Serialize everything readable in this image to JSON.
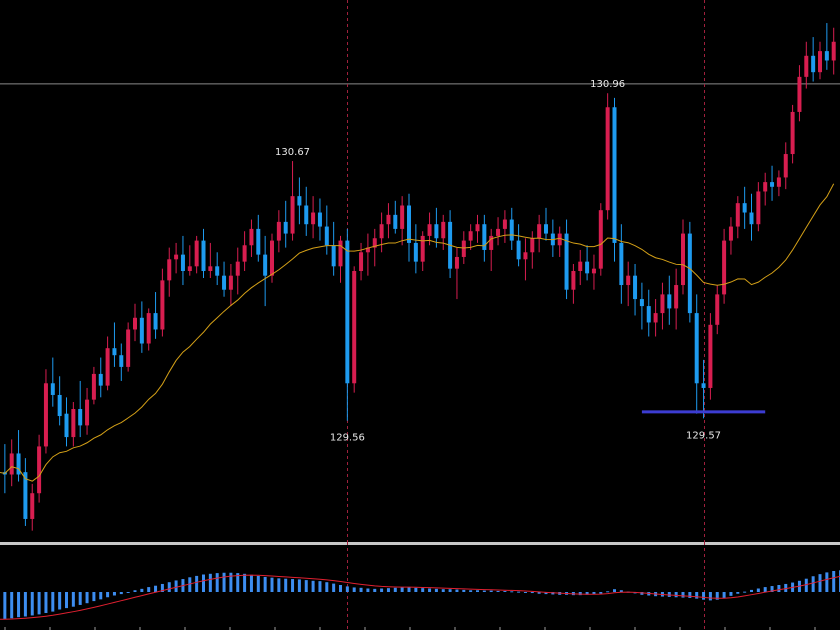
{
  "chart_data": [
    {
      "type": "candlestick",
      "panel": "main",
      "colors": {
        "up_body": "#d81e50",
        "down_body": "#1e9bf0",
        "doji": "#2ecc40",
        "moving_average": "#d4a017",
        "low_marker": "#3c3cd2",
        "horizontal_line": "#8a8a8a",
        "vertical_line": "#a0203c"
      },
      "ylim": [
        129.05,
        131.35
      ],
      "horizontal_line_price": 131.0,
      "markers": [
        {
          "label": "130.67",
          "price": 130.67,
          "candle": 43
        },
        {
          "label": "129.56",
          "price": 129.56,
          "candle": 51
        },
        {
          "label": "130.96",
          "price": 130.96,
          "candle": 89
        },
        {
          "label": "129.57",
          "price": 129.57,
          "candle": 103
        }
      ],
      "vertical_markers_at_candle": [
        51,
        103
      ],
      "low_marker_span_candles": [
        94,
        112
      ],
      "candles": [
        [
          129.26,
          129.39,
          129.2,
          129.34
        ],
        [
          129.34,
          129.46,
          129.25,
          129.33
        ],
        [
          129.33,
          129.48,
          129.28,
          129.42
        ],
        [
          129.42,
          129.52,
          129.3,
          129.33
        ],
        [
          129.34,
          129.4,
          129.11,
          129.14
        ],
        [
          129.14,
          129.29,
          129.09,
          129.25
        ],
        [
          129.25,
          129.5,
          129.21,
          129.45
        ],
        [
          129.45,
          129.78,
          129.42,
          129.72
        ],
        [
          129.72,
          129.83,
          129.62,
          129.67
        ],
        [
          129.67,
          129.75,
          129.54,
          129.58
        ],
        [
          129.59,
          129.66,
          129.45,
          129.49
        ],
        [
          129.49,
          129.64,
          129.45,
          129.61
        ],
        [
          129.61,
          129.73,
          129.49,
          129.54
        ],
        [
          129.54,
          129.7,
          129.5,
          129.65
        ],
        [
          129.65,
          129.79,
          129.63,
          129.76
        ],
        [
          129.76,
          129.83,
          129.66,
          129.71
        ],
        [
          129.71,
          129.92,
          129.69,
          129.87
        ],
        [
          129.87,
          129.98,
          129.79,
          129.84
        ],
        [
          129.84,
          129.89,
          129.73,
          129.79
        ],
        [
          129.79,
          129.98,
          129.77,
          129.95
        ],
        [
          129.95,
          130.06,
          129.9,
          130.0
        ],
        [
          130.0,
          130.07,
          129.85,
          129.89
        ],
        [
          129.89,
          130.04,
          129.86,
          130.02
        ],
        [
          130.02,
          130.11,
          129.91,
          129.95
        ],
        [
          129.95,
          130.21,
          129.92,
          130.16
        ],
        [
          130.16,
          130.3,
          130.09,
          130.25
        ],
        [
          130.25,
          130.32,
          130.19,
          130.27
        ],
        [
          130.27,
          130.35,
          130.14,
          130.2
        ],
        [
          130.2,
          130.31,
          130.18,
          130.22
        ],
        [
          130.22,
          130.35,
          130.19,
          130.33
        ],
        [
          130.33,
          130.38,
          130.17,
          130.2
        ],
        [
          130.2,
          130.32,
          130.17,
          130.22
        ],
        [
          130.22,
          130.28,
          130.14,
          130.18
        ],
        [
          130.18,
          130.24,
          130.09,
          130.12
        ],
        [
          130.12,
          130.23,
          130.05,
          130.18
        ],
        [
          130.18,
          130.3,
          130.1,
          130.24
        ],
        [
          130.24,
          130.37,
          130.2,
          130.31
        ],
        [
          130.31,
          130.42,
          130.26,
          130.38
        ],
        [
          130.38,
          130.44,
          130.24,
          130.27
        ],
        [
          130.27,
          130.35,
          130.05,
          130.18
        ],
        [
          130.18,
          130.36,
          130.15,
          130.33
        ],
        [
          130.33,
          130.46,
          130.28,
          130.41
        ],
        [
          130.41,
          130.5,
          130.3,
          130.36
        ],
        [
          130.36,
          130.67,
          130.33,
          130.52
        ],
        [
          130.52,
          130.6,
          130.4,
          130.48
        ],
        [
          130.48,
          130.56,
          130.35,
          130.4
        ],
        [
          130.4,
          130.52,
          130.34,
          130.45
        ],
        [
          130.45,
          130.51,
          130.33,
          130.39
        ],
        [
          130.39,
          130.48,
          130.27,
          130.31
        ],
        [
          130.31,
          130.41,
          130.18,
          130.22
        ],
        [
          130.22,
          130.35,
          130.15,
          130.33
        ],
        [
          130.33,
          130.38,
          129.56,
          129.72
        ],
        [
          129.72,
          130.22,
          129.68,
          130.2
        ],
        [
          130.2,
          130.32,
          130.16,
          130.28
        ],
        [
          130.28,
          130.36,
          130.18,
          130.3
        ],
        [
          130.3,
          130.38,
          130.22,
          130.34
        ],
        [
          130.34,
          130.45,
          130.28,
          130.4
        ],
        [
          130.4,
          130.49,
          130.34,
          130.44
        ],
        [
          130.44,
          130.5,
          130.36,
          130.38
        ],
        [
          130.38,
          130.52,
          130.31,
          130.48
        ],
        [
          130.48,
          130.53,
          130.24,
          130.32
        ],
        [
          130.32,
          130.4,
          130.19,
          130.24
        ],
        [
          130.24,
          130.37,
          130.2,
          130.35
        ],
        [
          130.35,
          130.45,
          130.31,
          130.4
        ],
        [
          130.4,
          130.47,
          130.3,
          130.34
        ],
        [
          130.34,
          130.44,
          130.29,
          130.41
        ],
        [
          130.41,
          130.46,
          130.17,
          130.21
        ],
        [
          130.21,
          130.3,
          130.08,
          130.26
        ],
        [
          130.26,
          130.37,
          130.23,
          130.33
        ],
        [
          130.33,
          130.4,
          130.29,
          130.37
        ],
        [
          130.37,
          130.44,
          130.32,
          130.4
        ],
        [
          130.4,
          130.44,
          130.24,
          130.29
        ],
        [
          130.29,
          130.38,
          130.2,
          130.35
        ],
        [
          130.35,
          130.43,
          130.31,
          130.38
        ],
        [
          130.38,
          130.46,
          130.32,
          130.42
        ],
        [
          130.42,
          130.47,
          130.29,
          130.33
        ],
        [
          130.33,
          130.4,
          130.22,
          130.25
        ],
        [
          130.25,
          130.34,
          130.16,
          130.28
        ],
        [
          130.28,
          130.37,
          130.21,
          130.34
        ],
        [
          130.34,
          130.44,
          130.28,
          130.4
        ],
        [
          130.4,
          130.47,
          130.33,
          130.36
        ],
        [
          130.36,
          130.42,
          130.26,
          130.31
        ],
        [
          130.31,
          130.39,
          130.26,
          130.36
        ],
        [
          130.36,
          130.42,
          130.08,
          130.12
        ],
        [
          130.12,
          130.23,
          130.06,
          130.2
        ],
        [
          130.2,
          130.29,
          130.14,
          130.24
        ],
        [
          130.24,
          130.31,
          130.16,
          130.19
        ],
        [
          130.19,
          130.27,
          130.12,
          130.21
        ],
        [
          130.21,
          130.49,
          130.18,
          130.46
        ],
        [
          130.46,
          130.96,
          130.42,
          130.9
        ],
        [
          130.9,
          130.94,
          130.24,
          130.32
        ],
        [
          130.32,
          130.4,
          130.06,
          130.14
        ],
        [
          130.14,
          130.24,
          130.05,
          130.18
        ],
        [
          130.18,
          130.23,
          130.01,
          130.08
        ],
        [
          130.08,
          130.15,
          129.95,
          130.05
        ],
        [
          130.05,
          130.12,
          129.92,
          129.98
        ],
        [
          129.98,
          130.08,
          129.92,
          130.02
        ],
        [
          130.02,
          130.15,
          129.95,
          130.1
        ],
        [
          130.1,
          130.18,
          129.97,
          130.04
        ],
        [
          130.04,
          130.21,
          129.95,
          130.14
        ],
        [
          130.14,
          130.42,
          130.1,
          130.36
        ],
        [
          130.36,
          130.41,
          129.98,
          130.02
        ],
        [
          130.02,
          130.1,
          129.59,
          129.72
        ],
        [
          129.72,
          129.82,
          129.57,
          129.7
        ],
        [
          129.7,
          130.02,
          129.65,
          129.97
        ],
        [
          129.97,
          130.14,
          129.93,
          130.1
        ],
        [
          130.1,
          130.38,
          130.06,
          130.33
        ],
        [
          130.33,
          130.43,
          130.27,
          130.39
        ],
        [
          130.39,
          130.52,
          130.34,
          130.49
        ],
        [
          130.49,
          130.56,
          130.38,
          130.45
        ],
        [
          130.45,
          130.53,
          130.33,
          130.4
        ],
        [
          130.4,
          130.58,
          130.37,
          130.54
        ],
        [
          130.54,
          130.62,
          130.48,
          130.58
        ],
        [
          130.58,
          130.65,
          130.5,
          130.56
        ],
        [
          130.56,
          130.63,
          130.52,
          130.6
        ],
        [
          130.6,
          130.75,
          130.55,
          130.7
        ],
        [
          130.7,
          130.91,
          130.66,
          130.88
        ],
        [
          130.88,
          131.08,
          130.84,
          131.03
        ],
        [
          131.03,
          131.18,
          130.98,
          131.12
        ],
        [
          131.12,
          131.2,
          131.01,
          131.05
        ],
        [
          131.05,
          131.18,
          131.02,
          131.14
        ],
        [
          131.14,
          131.26,
          131.06,
          131.1
        ],
        [
          131.1,
          131.24,
          131.04,
          131.18
        ]
      ]
    },
    {
      "type": "bar",
      "panel": "oscillator",
      "colors": {
        "histogram": "#3d8df0",
        "signal": "#e02030",
        "separator": "#c8c8c8"
      },
      "ylim": [
        -1.0,
        1.0
      ],
      "zero_level": 0,
      "signal_smoothing": 9,
      "histogram": [
        -0.78,
        -0.77,
        -0.75,
        -0.72,
        -0.7,
        -0.67,
        -0.64,
        -0.6,
        -0.56,
        -0.5,
        -0.46,
        -0.42,
        -0.37,
        -0.32,
        -0.26,
        -0.21,
        -0.15,
        -0.1,
        -0.06,
        -0.01,
        0.05,
        0.09,
        0.14,
        0.18,
        0.23,
        0.28,
        0.33,
        0.37,
        0.42,
        0.46,
        0.5,
        0.52,
        0.54,
        0.55,
        0.55,
        0.54,
        0.52,
        0.49,
        0.46,
        0.43,
        0.41,
        0.39,
        0.38,
        0.37,
        0.36,
        0.34,
        0.32,
        0.31,
        0.28,
        0.24,
        0.2,
        0.16,
        0.13,
        0.12,
        0.1,
        0.09,
        0.1,
        0.11,
        0.12,
        0.13,
        0.13,
        0.12,
        0.11,
        0.1,
        0.09,
        0.08,
        0.08,
        0.07,
        0.06,
        0.05,
        0.05,
        0.04,
        0.04,
        0.03,
        0.03,
        0.02,
        0.01,
        -0.01,
        -0.03,
        -0.05,
        -0.06,
        -0.07,
        -0.08,
        -0.08,
        -0.09,
        -0.09,
        -0.08,
        -0.07,
        -0.05,
        0.02,
        0.08,
        0.05,
        0.01,
        -0.04,
        -0.08,
        -0.1,
        -0.12,
        -0.13,
        -0.14,
        -0.15,
        -0.16,
        -0.17,
        -0.19,
        -0.22,
        -0.24,
        -0.22,
        -0.17,
        -0.11,
        -0.05,
        0.01,
        0.06,
        0.1,
        0.14,
        0.17,
        0.2,
        0.23,
        0.27,
        0.32,
        0.38,
        0.45,
        0.51,
        0.56,
        0.6,
        0.62,
        0.63
      ]
    }
  ]
}
